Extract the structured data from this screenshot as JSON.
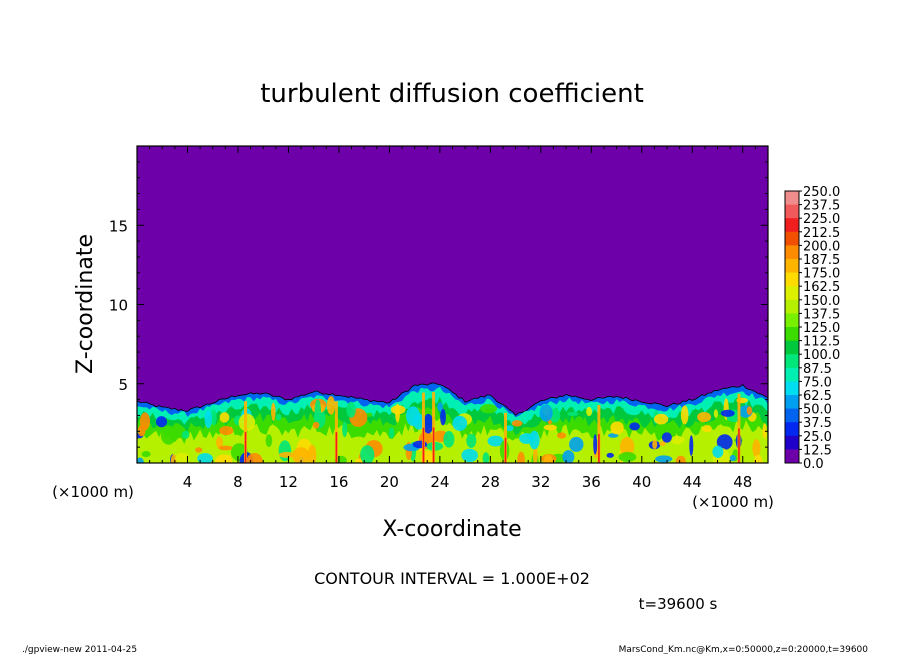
{
  "chart_data": {
    "type": "heatmap",
    "title": "turbulent diffusion coefficient",
    "xlabel": "X-coordinate",
    "ylabel": "Z-coordinate",
    "x_unit_label": "(×1000 m)",
    "y_unit_label": "(×1000 m)",
    "xlim": [
      0,
      50
    ],
    "ylim": [
      0,
      20
    ],
    "x_ticks": [
      "4",
      "8",
      "12",
      "16",
      "20",
      "24",
      "28",
      "32",
      "36",
      "40",
      "44",
      "48"
    ],
    "y_ticks": [
      "5",
      "10",
      "15"
    ],
    "contour_interval_text": "CONTOUR INTERVAL = 1.000E+02",
    "time_text": "t=39600 s",
    "footer_left": "./gpview-new   2011-04-25",
    "footer_right": "MarsCond_Km.nc@Km,x=0:50000,z=0:20000,t=39600",
    "colorbar_levels": [
      "250.0",
      "237.5",
      "225.0",
      "212.5",
      "200.0",
      "187.5",
      "175.0",
      "162.5",
      "150.0",
      "137.5",
      "125.0",
      "112.5",
      "100.0",
      "87.5",
      "75.0",
      "62.5",
      "50.0",
      "37.5",
      "25.0",
      "12.5",
      "0.0"
    ],
    "colorbar_colors": [
      "#f08c8c",
      "#f05a5a",
      "#f01e1e",
      "#f05000",
      "#ff8c00",
      "#ffb400",
      "#ffdc00",
      "#dcf000",
      "#b4f000",
      "#78f000",
      "#3cdc00",
      "#00c83c",
      "#00e678",
      "#00f0b4",
      "#00dcf0",
      "#00a0f0",
      "#0064f0",
      "#0028f0",
      "#1e00c8",
      "#6e00aa"
    ],
    "background_value": 0.0,
    "boundary_layer_top_km_at_x": {
      "x": [
        0,
        2,
        4,
        6,
        8,
        10,
        12,
        14,
        16,
        18,
        20,
        22,
        24,
        26,
        28,
        30,
        32,
        34,
        36,
        38,
        40,
        42,
        44,
        46,
        48,
        50
      ],
      "z": [
        3.9,
        3.5,
        3.3,
        3.8,
        4.3,
        4.4,
        4.0,
        4.5,
        4.3,
        4.0,
        3.8,
        4.9,
        5.0,
        3.9,
        4.3,
        3.0,
        3.9,
        4.3,
        4.0,
        4.2,
        3.9,
        3.6,
        4.0,
        4.6,
        4.9,
        4.1
      ]
    }
  }
}
